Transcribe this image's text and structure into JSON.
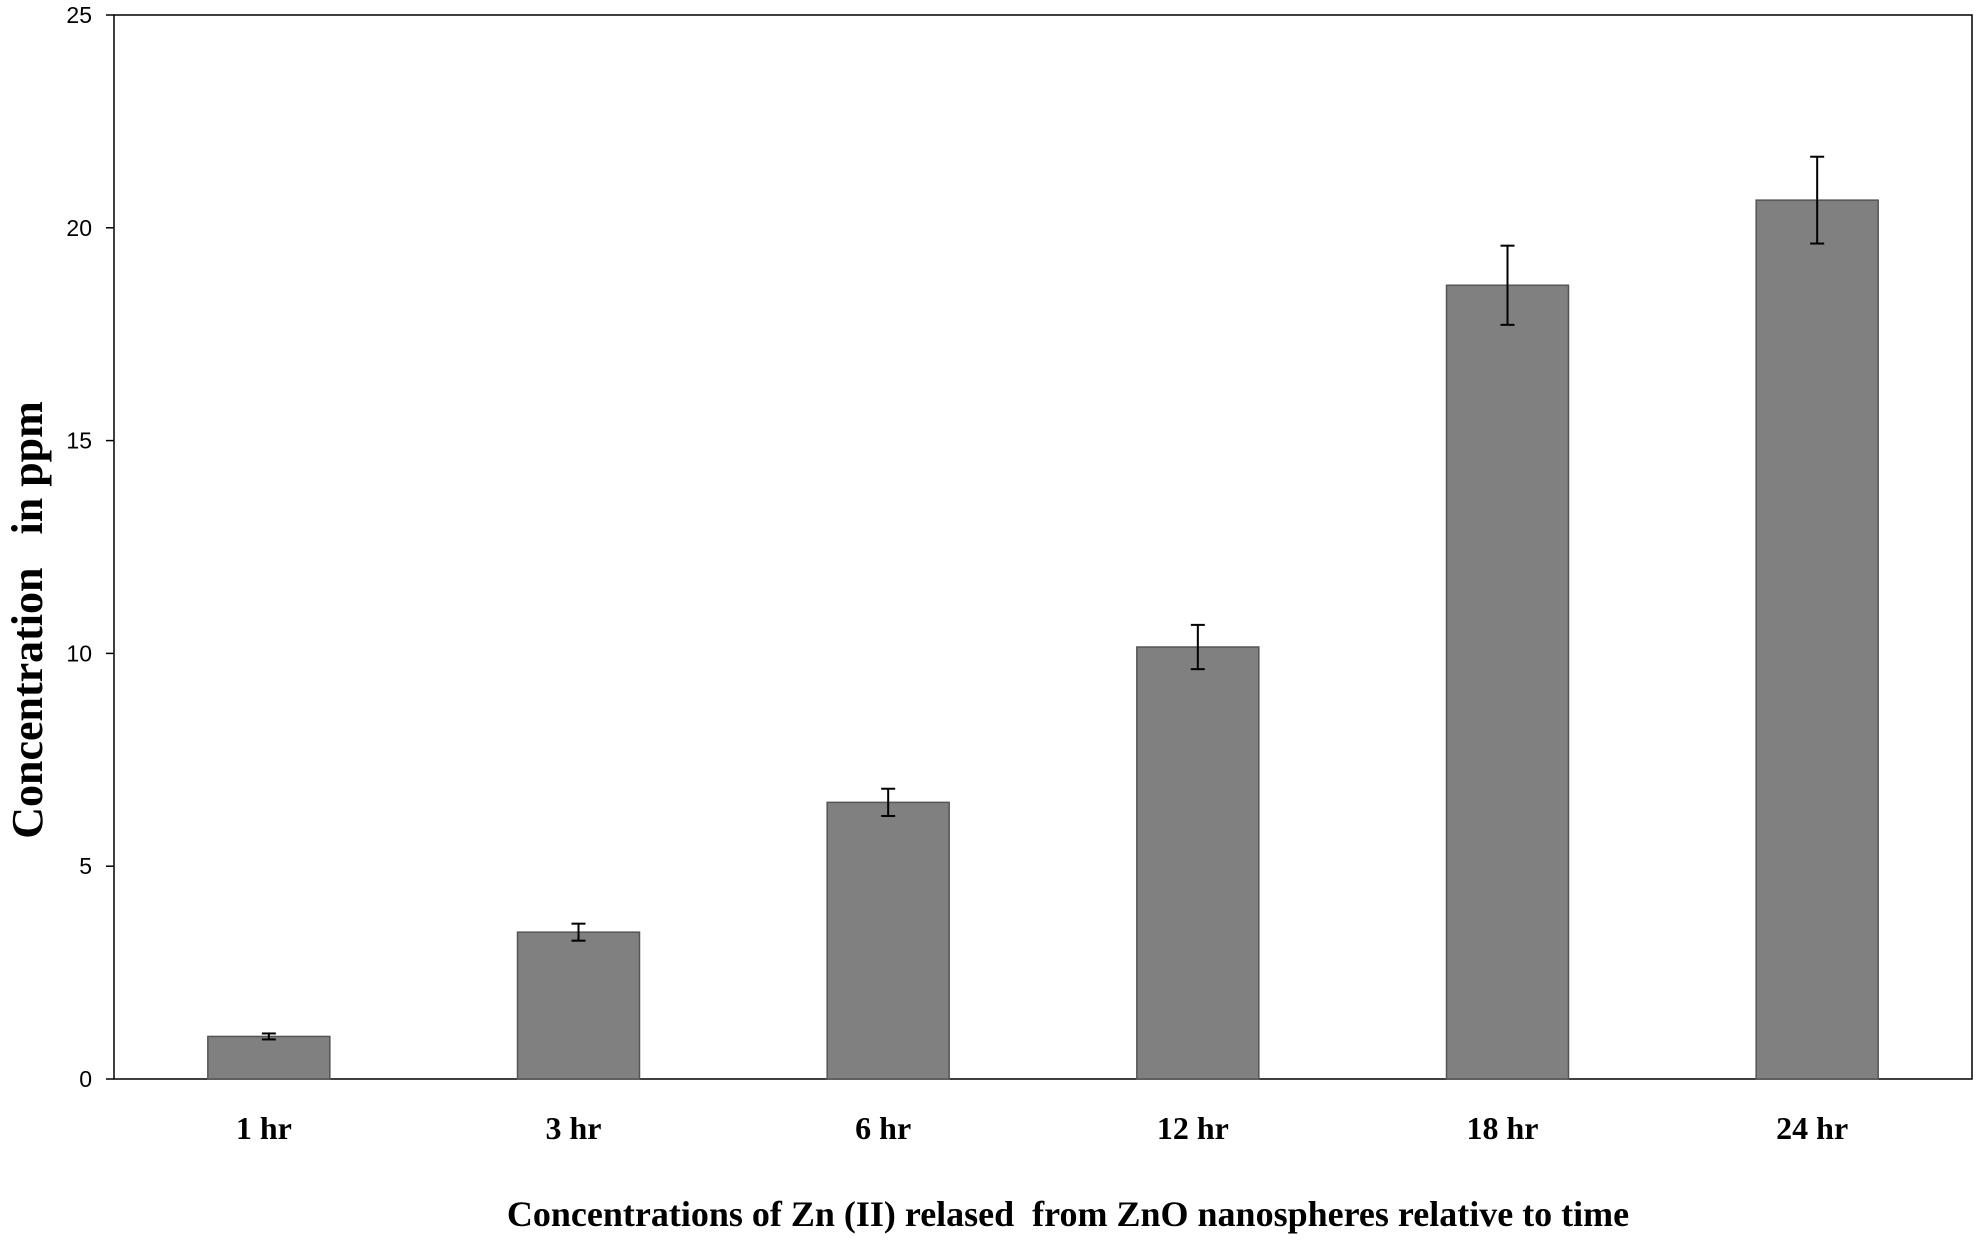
{
  "chart_data": {
    "type": "bar",
    "categories": [
      "1 hr",
      "3 hr",
      "6 hr",
      "12 hr",
      "18 hr",
      "24 hr"
    ],
    "values": [
      1.0,
      3.45,
      6.5,
      10.15,
      18.65,
      20.65
    ],
    "errors": [
      0.07,
      0.2,
      0.32,
      0.52,
      0.93,
      1.02
    ],
    "title": "",
    "xlabel": "Concentrations of Zn (II) relased  from ZnO nanospheres relative to time",
    "ylabel": "Concentration   in ppm",
    "ylim": [
      0,
      25
    ],
    "yticks": [
      0,
      5,
      10,
      15,
      20,
      25
    ],
    "grid": false,
    "bar_color": "#808080"
  }
}
